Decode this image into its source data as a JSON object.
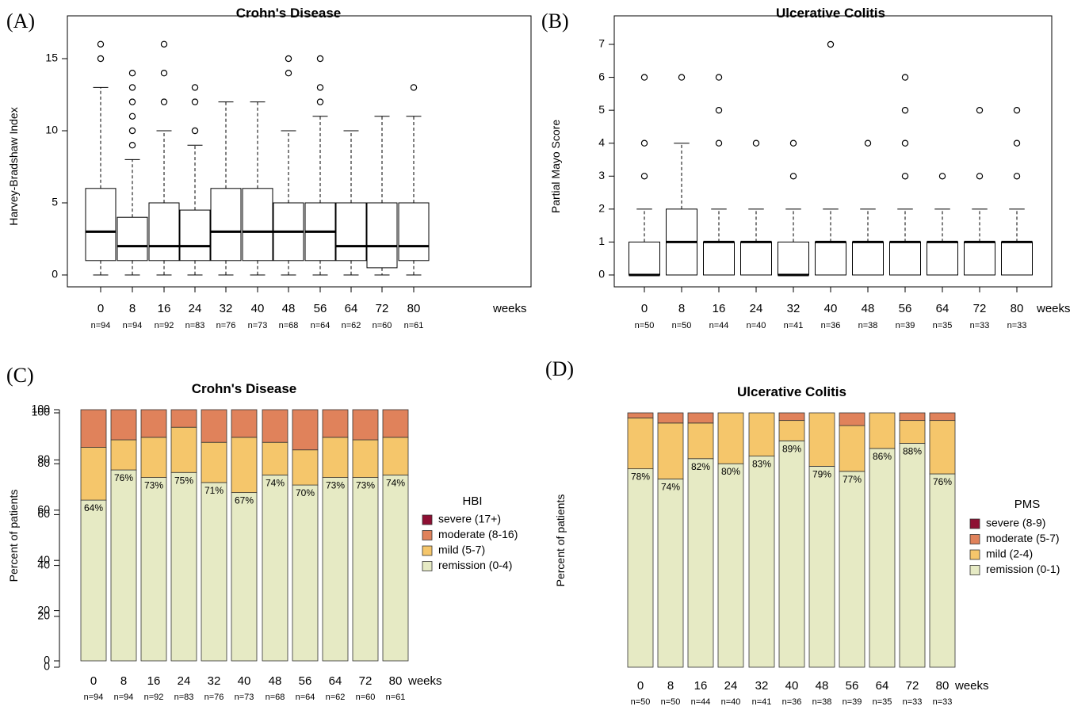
{
  "chart_data": [
    {
      "panel": "(A)",
      "type": "box",
      "title": "Crohn's Disease",
      "ylabel": "Harvey-Bradshaw Index",
      "x_unit": "weeks",
      "ylim": [
        0,
        16
      ],
      "yticks": [
        0,
        5,
        10,
        15
      ],
      "categories": [
        "0",
        "8",
        "16",
        "24",
        "32",
        "40",
        "48",
        "56",
        "64",
        "72",
        "80"
      ],
      "n": [
        "n=94",
        "n=94",
        "n=92",
        "n=83",
        "n=76",
        "n=73",
        "n=68",
        "n=64",
        "n=62",
        "n=60",
        "n=61"
      ],
      "boxes": [
        {
          "min": 0,
          "q1": 1,
          "median": 3,
          "q3": 6,
          "max": 13,
          "outliers": [
            15,
            16
          ]
        },
        {
          "min": 0,
          "q1": 1,
          "median": 2,
          "q3": 4,
          "max": 8,
          "outliers": [
            9,
            10,
            11,
            12,
            13,
            14
          ]
        },
        {
          "min": 0,
          "q1": 1,
          "median": 2,
          "q3": 5,
          "max": 10,
          "outliers": [
            12,
            14,
            16
          ]
        },
        {
          "min": 0,
          "q1": 1,
          "median": 2,
          "q3": 4.5,
          "max": 9,
          "outliers": [
            10,
            12,
            13
          ]
        },
        {
          "min": 0,
          "q1": 1,
          "median": 3,
          "q3": 6,
          "max": 12,
          "outliers": []
        },
        {
          "min": 0,
          "q1": 1,
          "median": 3,
          "q3": 6,
          "max": 12,
          "outliers": []
        },
        {
          "min": 0,
          "q1": 1,
          "median": 3,
          "q3": 5,
          "max": 10,
          "outliers": [
            14,
            15
          ]
        },
        {
          "min": 0,
          "q1": 1,
          "median": 3,
          "q3": 5,
          "max": 11,
          "outliers": [
            12,
            13,
            15
          ]
        },
        {
          "min": 0,
          "q1": 1,
          "median": 2,
          "q3": 5,
          "max": 10,
          "outliers": []
        },
        {
          "min": 0,
          "q1": 0.5,
          "median": 2,
          "q3": 5,
          "max": 11,
          "outliers": []
        },
        {
          "min": 0,
          "q1": 1,
          "median": 2,
          "q3": 5,
          "max": 11,
          "outliers": [
            13
          ]
        }
      ]
    },
    {
      "panel": "(B)",
      "type": "box",
      "title": "Ulcerative Colitis",
      "ylabel": "Partial Mayo Score",
      "x_unit": "weeks",
      "ylim": [
        0,
        7
      ],
      "yticks": [
        0,
        1,
        2,
        3,
        4,
        5,
        6,
        7
      ],
      "categories": [
        "0",
        "8",
        "16",
        "24",
        "32",
        "40",
        "48",
        "56",
        "64",
        "72",
        "80"
      ],
      "n": [
        "n=50",
        "n=50",
        "n=44",
        "n=40",
        "n=41",
        "n=36",
        "n=38",
        "n=39",
        "n=35",
        "n=33",
        "n=33"
      ],
      "boxes": [
        {
          "min": 0,
          "q1": 0,
          "median": 0,
          "q3": 1,
          "max": 2,
          "outliers": [
            3,
            4,
            6
          ]
        },
        {
          "min": 0,
          "q1": 0,
          "median": 1,
          "q3": 2,
          "max": 4,
          "outliers": [
            6
          ]
        },
        {
          "min": 0,
          "q1": 0,
          "median": 1,
          "q3": 1,
          "max": 2,
          "outliers": [
            4,
            5,
            6
          ]
        },
        {
          "min": 0,
          "q1": 0,
          "median": 1,
          "q3": 1,
          "max": 2,
          "outliers": [
            4
          ]
        },
        {
          "min": 0,
          "q1": 0,
          "median": 0,
          "q3": 1,
          "max": 2,
          "outliers": [
            3,
            4
          ]
        },
        {
          "min": 0,
          "q1": 0,
          "median": 1,
          "q3": 1,
          "max": 2,
          "outliers": [
            7
          ]
        },
        {
          "min": 0,
          "q1": 0,
          "median": 1,
          "q3": 1,
          "max": 2,
          "outliers": [
            4
          ]
        },
        {
          "min": 0,
          "q1": 0,
          "median": 1,
          "q3": 1,
          "max": 2,
          "outliers": [
            3,
            4,
            5,
            6
          ]
        },
        {
          "min": 0,
          "q1": 0,
          "median": 1,
          "q3": 1,
          "max": 2,
          "outliers": [
            3
          ]
        },
        {
          "min": 0,
          "q1": 0,
          "median": 1,
          "q3": 1,
          "max": 2,
          "outliers": [
            3,
            5
          ]
        },
        {
          "min": 0,
          "q1": 0,
          "median": 1,
          "q3": 1,
          "max": 2,
          "outliers": [
            3,
            4,
            5
          ]
        }
      ]
    },
    {
      "panel": "(C)",
      "type": "stacked-bar",
      "title": "Crohn's Disease",
      "ylabel": "Percent of patients",
      "x_unit": "weeks",
      "ylim": [
        0,
        100
      ],
      "yticks": [
        0,
        20,
        40,
        60,
        80,
        100
      ],
      "categories": [
        "0",
        "8",
        "16",
        "24",
        "32",
        "40",
        "48",
        "56",
        "64",
        "72",
        "80"
      ],
      "n": [
        "n=94",
        "n=94",
        "n=92",
        "n=83",
        "n=76",
        "n=73",
        "n=68",
        "n=64",
        "n=62",
        "n=60",
        "n=61"
      ],
      "legend_title": "HBI",
      "series": [
        {
          "name": "remission (0-4)",
          "color": "#e6eac4",
          "values": [
            64,
            76,
            73,
            75,
            71,
            67,
            74,
            70,
            73,
            73,
            74
          ]
        },
        {
          "name": "mild (5-7)",
          "color": "#f5c66b",
          "values": [
            21,
            12,
            16,
            18,
            16,
            22,
            13,
            14,
            16,
            15,
            15
          ]
        },
        {
          "name": "moderate (8-16)",
          "color": "#e0825b",
          "values": [
            15,
            12,
            11,
            7,
            13,
            11,
            13,
            16,
            11,
            12,
            11
          ]
        },
        {
          "name": "severe (17+)",
          "color": "#8e0f33",
          "values": [
            0,
            0,
            0,
            0,
            0,
            0,
            0,
            0,
            0,
            0,
            0
          ]
        }
      ],
      "labels": [
        "64%",
        "76%",
        "73%",
        "75%",
        "71%",
        "67%",
        "74%",
        "70%",
        "73%",
        "73%",
        "74%"
      ]
    },
    {
      "panel": "(D)",
      "type": "stacked-bar",
      "title": "Ulcerative Colitis",
      "ylabel": "Percent of patients",
      "x_unit": "weeks",
      "ylim": [
        0,
        100
      ],
      "yticks": [
        0,
        20,
        40,
        60,
        80,
        100
      ],
      "categories": [
        "0",
        "8",
        "16",
        "24",
        "32",
        "40",
        "48",
        "56",
        "64",
        "72",
        "80"
      ],
      "n": [
        "n=50",
        "n=50",
        "n=44",
        "n=40",
        "n=41",
        "n=36",
        "n=38",
        "n=39",
        "n=35",
        "n=33",
        "n=33"
      ],
      "legend_title": "PMS",
      "series": [
        {
          "name": "remission (0-1)",
          "color": "#e6eac4",
          "values": [
            78,
            74,
            82,
            80,
            83,
            89,
            79,
            77,
            86,
            88,
            76
          ]
        },
        {
          "name": "mild (2-4)",
          "color": "#f5c66b",
          "values": [
            20,
            22,
            14,
            20,
            17,
            8,
            21,
            18,
            14,
            9,
            21
          ]
        },
        {
          "name": "moderate (5-7)",
          "color": "#e0825b",
          "values": [
            2,
            4,
            4,
            0,
            0,
            3,
            0,
            5,
            0,
            3,
            3
          ]
        },
        {
          "name": "severe (8-9)",
          "color": "#8e0f33",
          "values": [
            0,
            0,
            0,
            0,
            0,
            0,
            0,
            0,
            0,
            0,
            0
          ]
        }
      ],
      "labels": [
        "78%",
        "74%",
        "82%",
        "80%",
        "83%",
        "89%",
        "79%",
        "77%",
        "86%",
        "88%",
        "76%"
      ]
    }
  ]
}
